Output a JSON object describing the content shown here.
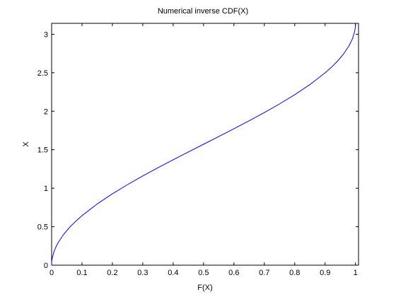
{
  "chart_data": {
    "type": "line",
    "title": "Numerical inverse CDF(X)",
    "xlabel": "F(X)",
    "ylabel": "X",
    "xlim": [
      0,
      1.01
    ],
    "ylim": [
      0,
      3.1416
    ],
    "xticks": [
      0,
      0.1,
      0.2,
      0.3,
      0.4,
      0.5,
      0.6,
      0.7,
      0.8,
      0.9,
      1
    ],
    "xtick_labels": [
      "0",
      "0.1",
      "0.2",
      "0.3",
      "0.4",
      "0.5",
      "0.6",
      "0.7",
      "0.8",
      "0.9",
      "1"
    ],
    "yticks": [
      0,
      0.5,
      1,
      1.5,
      2,
      2.5,
      3
    ],
    "ytick_labels": [
      "0",
      "0.5",
      "1",
      "1.5",
      "2",
      "2.5",
      "3"
    ],
    "grid": false,
    "series": [
      {
        "color": "#0000ff",
        "x": [
          0,
          0.0003,
          0.003,
          0.01,
          0.02,
          0.04,
          0.06,
          0.08,
          0.1,
          0.15,
          0.2,
          0.25,
          0.3,
          0.35,
          0.4,
          0.45,
          0.5,
          0.55,
          0.6,
          0.65,
          0.7,
          0.75,
          0.8,
          0.85,
          0.9,
          0.92,
          0.94,
          0.96,
          0.98,
          0.99,
          0.997,
          0.9997,
          1
        ],
        "y": [
          0,
          0.0488,
          0.1097,
          0.2003,
          0.2838,
          0.4027,
          0.4949,
          0.5735,
          0.6435,
          0.7954,
          0.9273,
          1.0472,
          1.1593,
          1.2661,
          1.3694,
          1.4706,
          1.5708,
          1.671,
          1.7722,
          1.8755,
          1.9823,
          2.0944,
          2.2143,
          2.3462,
          2.4981,
          2.5681,
          2.6467,
          2.7389,
          2.8578,
          2.9413,
          3.0319,
          3.0928,
          3.1416
        ]
      }
    ]
  }
}
